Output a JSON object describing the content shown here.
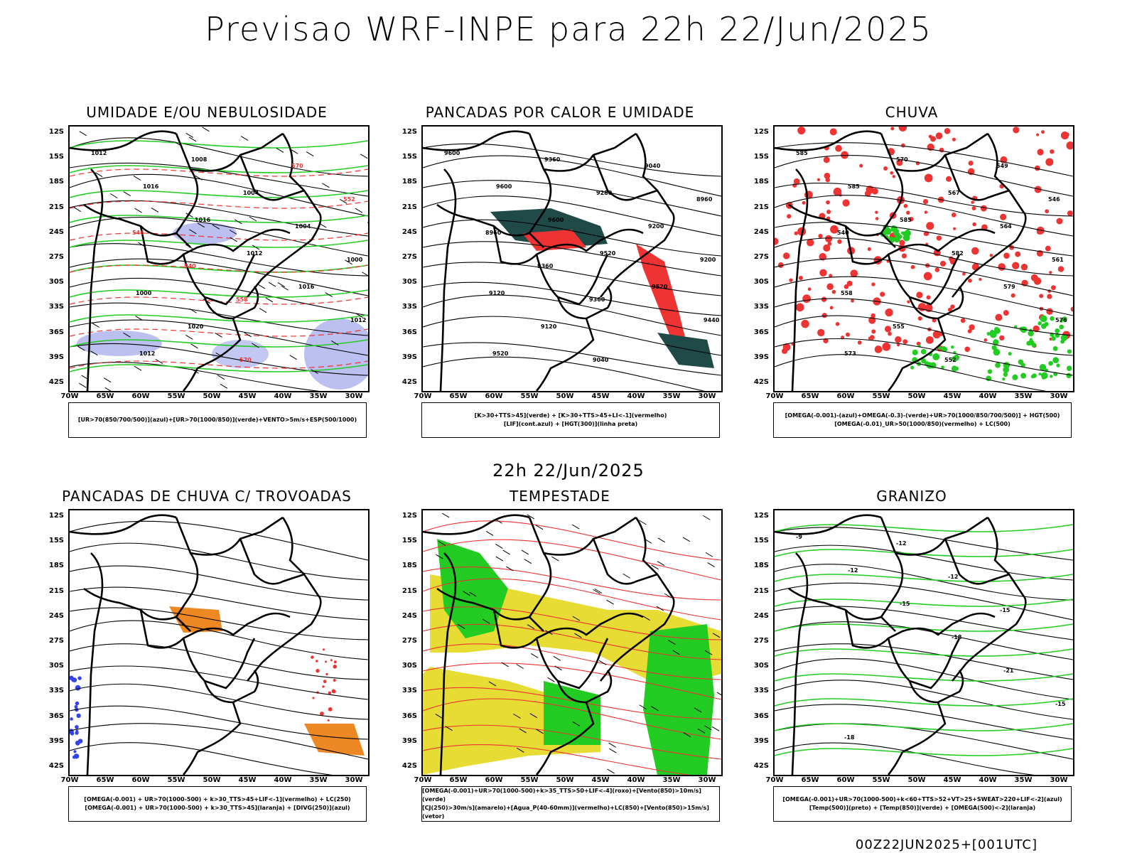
{
  "header": {
    "title": "Previsao WRF-INPE  para 22h 22/Jun/2025"
  },
  "mid_date": "22h 22/Jun/2025",
  "footer": "00Z22JUN2025+[001UTC]",
  "axes": {
    "lat_labels": [
      "12S",
      "15S",
      "18S",
      "21S",
      "24S",
      "27S",
      "30S",
      "33S",
      "36S",
      "39S",
      "42S"
    ],
    "lon_labels": [
      "70W",
      "65W",
      "60W",
      "55W",
      "50W",
      "45W",
      "40W",
      "35W",
      "30W"
    ]
  },
  "colors": {
    "green": "#22cc22",
    "red": "#ee3333",
    "blue": "#3344ee",
    "orange": "#ee8822",
    "yellow": "#e6dc33",
    "lavender": "#aab0ee",
    "darkteal": "#1f4a48"
  },
  "panels": [
    {
      "title": "UMIDADE E/OU NEBULOSIDADE",
      "legend": [
        "[UR>70(850/700/500)](azul)+[UR>70(1000/850)](verde)+VENTO>5m/s+ESP(500/1000)"
      ],
      "contour_labels": [
        "1012",
        "1016",
        "1016",
        "1012",
        "1016",
        "1012",
        "1012",
        "1008",
        "1004",
        "1004",
        "1000",
        "1000",
        "1020",
        "570",
        "570",
        "552",
        "546",
        "540",
        "558"
      ]
    },
    {
      "title": "PANCADAS POR CALOR E UMIDADE",
      "legend": [
        "[K>30+TTS>45](verde) + [K>30+TTS>45+LI<-1](vermelho)",
        "[LIF](cont.azul) + [HGT(300)](linha preta)"
      ],
      "contour_labels": [
        "9600",
        "9600",
        "9600",
        "9520",
        "9520",
        "9440",
        "9520",
        "9360",
        "9280",
        "9200",
        "9200",
        "9120",
        "9120",
        "9040",
        "9040",
        "8960",
        "8960",
        "9360",
        "9360"
      ]
    },
    {
      "title": "CHUVA",
      "legend": [
        "[OMEGA(-0.001)-(azul)+OMEGA(-0.3)-(verde)+UR>70(1000/850/700/500)] + HGT(500)",
        "[OMEGA(-0.01)_UR>50(1000/850)(vermelho) + LC(500)"
      ],
      "contour_labels": [
        "585",
        "585",
        "585",
        "582",
        "579",
        "576",
        "573",
        "570",
        "567",
        "564",
        "561",
        "558",
        "555",
        "552",
        "549",
        "546",
        "540"
      ]
    },
    {
      "title": "PANCADAS DE CHUVA C/ TROVOADAS",
      "legend": [
        "[OMEGA(-0.001) + UR>70(1000-500) + k>30_TTS>45+LIF<-1](vermelho) + LC(250)",
        "[OMEGA(-0.001) + UR>70(1000-500) + k>30_TTS>45](laranja) + [DIVG(250)](azul)"
      ]
    },
    {
      "title": "TEMPESTADE",
      "legend": [
        "[OMEGA(-0.001)+UR>70(1000-500)+k>35_TTS>50+LIF<-4](roxo)+[Vento(850)>10m/s](verde)",
        "[CJ(250)>30m/s](amarelo)+[Agua_P(40-60mm)](vermelho)+LC(850)+[Vento(850)>15m/s](vetor)"
      ]
    },
    {
      "title": "GRANIZO",
      "legend": [
        "[OMEGA(-0.001)+UR>70(1000-500)+k<60+TTS>52+VT>25+SWEAT>220+LIF<-2](azul)",
        "[Temp(500)](preto) + [Temp(850)](verde) + [OMEGA(500)<-2](laranja)"
      ],
      "contour_labels": [
        "-9",
        "-12",
        "-15",
        "-18",
        "-21",
        "-15",
        "-18",
        "-12",
        "-12",
        "-15"
      ]
    }
  ]
}
